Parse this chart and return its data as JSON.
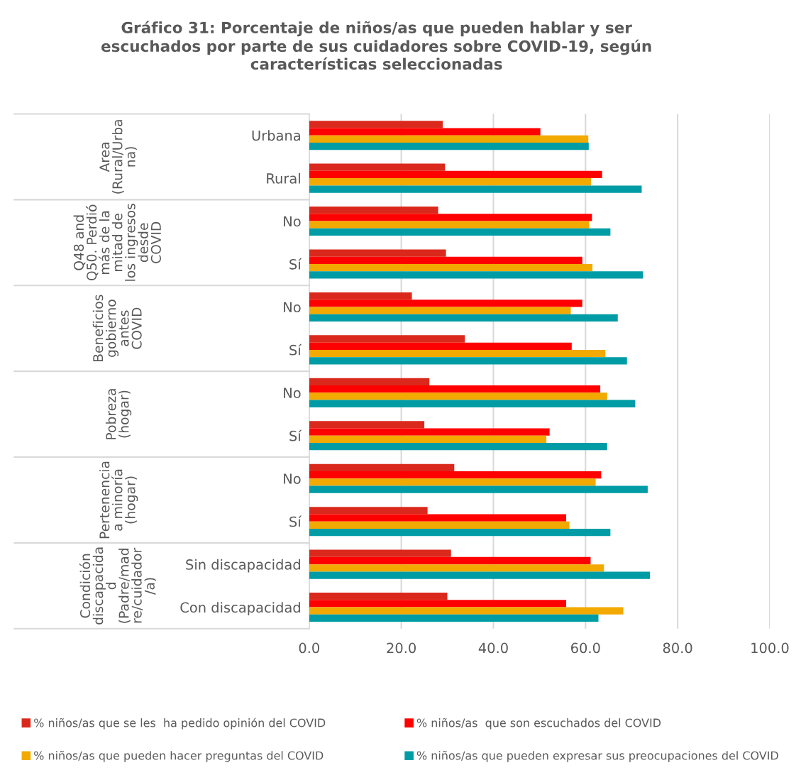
{
  "chart_data": {
    "type": "bar",
    "orientation": "horizontal",
    "title": "Gráfico 31: Porcentaje de niños/as que pueden hablar y ser\nescuchados por parte de sus cuidadores sobre COVID-19, según\ncaracterísticas seleccionadas",
    "categories": [
      "Urbana",
      "Rural",
      "No",
      "Sí",
      "No",
      "Sí",
      "No",
      "Sí",
      "No",
      "Sí",
      "Sin discapacidad",
      "Con discapacidad"
    ],
    "annotations": [
      "Area\n(Rural/Urba\nna)",
      "Q48 and\nQ50. Perdió\nmás de la\nmitad de\nlos ingresos\ndesde\nCOVID",
      "Beneficios\ngobierno\nantes\nCOVID",
      "Pobreza\n(hogar)",
      "Pertenencia\na minoría\n(hogar)",
      "Condición\ndiscapacida\nd\n(Padre/mad\nre/cuidador\n/a)"
    ],
    "series": [
      {
        "name": "% niños/as que se les  ha pedido opinión del COVID",
        "color": "#da291c",
        "values": [
          29.0,
          29.5,
          28.0,
          29.7,
          22.3,
          33.8,
          26.1,
          25.0,
          31.5,
          25.7,
          30.8,
          30.0
        ]
      },
      {
        "name": "% niños/as  que son escuchados del COVID",
        "color": "#ff0000",
        "values": [
          50.2,
          63.6,
          61.4,
          59.3,
          59.3,
          57.0,
          63.2,
          52.2,
          63.4,
          55.8,
          61.1,
          55.8
        ]
      },
      {
        "name": "% niños/as que pueden hacer preguntas del COVID",
        "color": "#f2a900",
        "values": [
          60.6,
          61.2,
          60.8,
          61.5,
          56.8,
          64.3,
          64.7,
          51.5,
          62.2,
          56.5,
          64.0,
          68.2
        ]
      },
      {
        "name": "% niños/as que pueden expresar sus preocupaciones del COVID",
        "color": "#009ca6",
        "values": [
          60.7,
          72.2,
          65.4,
          72.5,
          67.0,
          69.0,
          70.8,
          64.7,
          73.5,
          65.4,
          74.0,
          62.8
        ]
      }
    ],
    "xlim": [
      0,
      100
    ],
    "xticks": [
      {
        "value": 0,
        "label": "0.0"
      },
      {
        "value": 20,
        "label": "20.0"
      },
      {
        "value": 40,
        "label": "40.0"
      },
      {
        "value": 60,
        "label": "60.0"
      },
      {
        "value": 80,
        "label": "80.0"
      },
      {
        "value": 100,
        "label": "100.0"
      }
    ],
    "grid": "x",
    "legend": "bottom"
  }
}
